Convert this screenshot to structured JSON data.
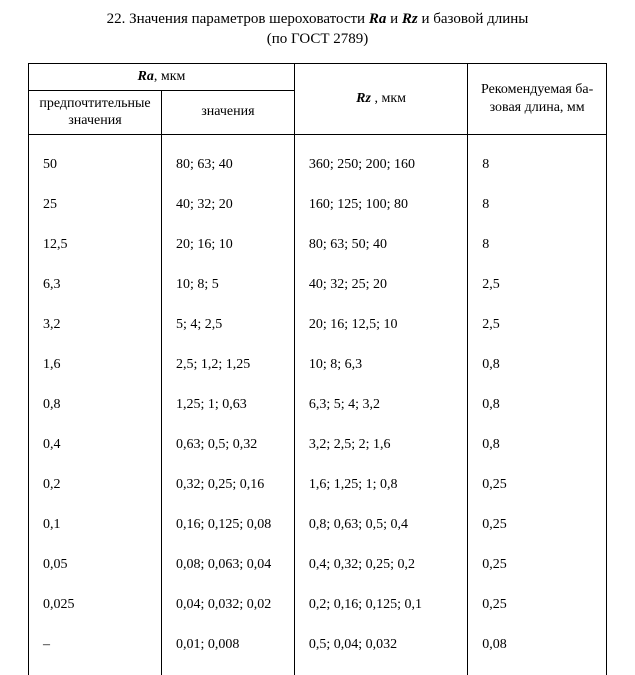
{
  "caption": {
    "prefix": "22. Значения параметров шероховатости ",
    "ra": "Ra",
    "mid": " и ",
    "rz": "Rz",
    "suffix": " и базовой длины",
    "line2": "(по ГОСТ 2789)"
  },
  "headers": {
    "ra_group_sym": "Ra",
    "ra_group_unit": ", мкм",
    "ra_pref": "предпочтительные значения",
    "ra_vals": "значения",
    "rz_sym": "Rz",
    "rz_unit": " , мкм",
    "base": "Рекомендуемая ба-\nзовая длина, мм"
  },
  "columns": {
    "ra_pref": [
      "50",
      "25",
      "12,5",
      "6,3",
      "3,2",
      "1,6",
      "0,8",
      "0,4",
      "0,2",
      "0,1",
      "0,05",
      "0,025",
      "–"
    ],
    "ra_vals": [
      "80; 63; 40",
      "40; 32; 20",
      "20; 16; 10",
      "10;  8;  5",
      "5; 4; 2,5",
      "2,5; 1,2; 1,25",
      "1,25; 1; 0,63",
      "0,63; 0,5; 0,32",
      "0,32; 0,25; 0,16",
      "0,16; 0,125; 0,08",
      "0,08; 0,063; 0,04",
      "0,04; 0,032; 0,02",
      "0,01;  0,008"
    ],
    "rz": [
      "360; 250; 200; 160",
      "160; 125; 100; 80",
      "80; 63; 50; 40",
      "40; 32; 25; 20",
      "20; 16; 12,5; 10",
      "10; 8; 6,3",
      "6,3; 5; 4; 3,2",
      "3,2;  2,5; 2; 1,6",
      "1,6; 1,25; 1; 0,8",
      "0,8; 0,63; 0,5; 0,4",
      "0,4; 0,32; 0,25; 0,2",
      "0,2; 0,16; 0,125; 0,1",
      "0,5; 0,04; 0,032"
    ],
    "base": [
      "8",
      "8",
      "8",
      "2,5",
      "2,5",
      "0,8",
      "0,8",
      "0,8",
      "0,25",
      "0,25",
      "0,25",
      "0,25",
      "0,08"
    ]
  }
}
